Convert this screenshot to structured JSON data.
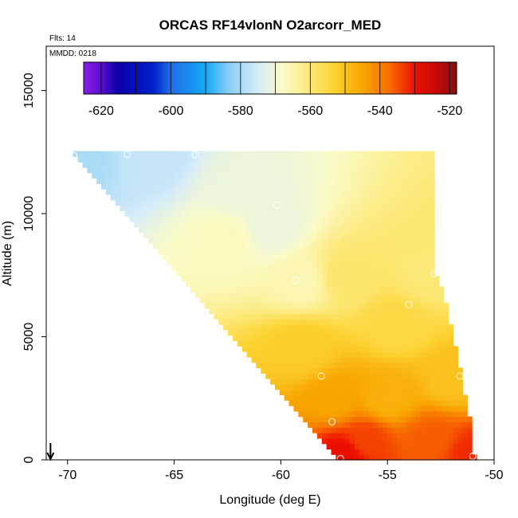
{
  "chart_data": {
    "type": "heatmap",
    "title": "ORCAS RF14vlonN O2arcorr_MED",
    "flights_label": "Flts: 14",
    "mmdd_label": "MMDD: 0218",
    "xlabel": "Longitude (deg E)",
    "ylabel": "Altitude (m)",
    "xlim": [
      -71,
      -50
    ],
    "ylim": [
      0,
      16800
    ],
    "x_ticks": [
      -70,
      -65,
      -60,
      -55,
      -50
    ],
    "x_tick_labels": [
      "-70",
      "-65",
      "-60",
      "-55",
      "-50"
    ],
    "y_ticks": [
      0,
      5000,
      10000,
      15000
    ],
    "y_tick_labels": [
      "0",
      "5000",
      "10000",
      "15000"
    ],
    "colorbar": {
      "range": [
        -625,
        -518
      ],
      "ticks": [
        -620,
        -600,
        -580,
        -560,
        -540,
        -520
      ],
      "tick_labels": [
        "-620",
        "-600",
        "-580",
        "-560",
        "-540",
        "-520"
      ],
      "stops": [
        {
          "v": -625,
          "c": "#8b1fe8"
        },
        {
          "v": -620,
          "c": "#5a0fd0"
        },
        {
          "v": -615,
          "c": "#0a00a8"
        },
        {
          "v": -605,
          "c": "#0022cc"
        },
        {
          "v": -600,
          "c": "#1e6fe8"
        },
        {
          "v": -590,
          "c": "#14aaf5"
        },
        {
          "v": -583,
          "c": "#8ed0f5"
        },
        {
          "v": -575,
          "c": "#d6ecf8"
        },
        {
          "v": -568,
          "c": "#fbfbc8"
        },
        {
          "v": -560,
          "c": "#fde877"
        },
        {
          "v": -553,
          "c": "#fcd230"
        },
        {
          "v": -545,
          "c": "#f8a500"
        },
        {
          "v": -537,
          "c": "#f86a00"
        },
        {
          "v": -530,
          "c": "#ee1000"
        },
        {
          "v": -524,
          "c": "#c80808"
        },
        {
          "v": -518,
          "c": "#801010"
        }
      ]
    },
    "field_region": {
      "top_altitude": 12450,
      "upper_left_corner_lon": -69.8,
      "lower_left_corner_lon": -57.2,
      "right_edge": [
        [
          -52.8,
          7800
        ],
        [
          -52.3,
          6500
        ],
        [
          -51.5,
          3300
        ],
        [
          -51.0,
          1000
        ],
        [
          -50.9,
          0
        ]
      ]
    },
    "field_value_model": {
      "anchors": [
        {
          "lon": -69.5,
          "alt": 12300,
          "value": -580
        },
        {
          "lon": -66.0,
          "alt": 12300,
          "value": -577
        },
        {
          "lon": -62.0,
          "alt": 11000,
          "value": -571
        },
        {
          "lon": -60.5,
          "alt": 9500,
          "value": -571
        },
        {
          "lon": -62.5,
          "alt": 9000,
          "value": -567
        },
        {
          "lon": -59.0,
          "alt": 7300,
          "value": -566
        },
        {
          "lon": -57.0,
          "alt": 7500,
          "value": -559
        },
        {
          "lon": -53.0,
          "alt": 7500,
          "value": -560
        },
        {
          "lon": -54.5,
          "alt": 5500,
          "value": -555
        },
        {
          "lon": -59.0,
          "alt": 4500,
          "value": -552
        },
        {
          "lon": -57.5,
          "alt": 2500,
          "value": -545
        },
        {
          "lon": -55.0,
          "alt": 2500,
          "value": -547
        },
        {
          "lon": -52.0,
          "alt": 3300,
          "value": -550
        },
        {
          "lon": -56.0,
          "alt": 800,
          "value": -534
        },
        {
          "lon": -53.0,
          "alt": 800,
          "value": -536
        },
        {
          "lon": -57.0,
          "alt": 200,
          "value": -529
        },
        {
          "lon": -51.0,
          "alt": 200,
          "value": -532
        }
      ]
    },
    "observation_points": [
      {
        "lon": -69.7,
        "alt": 12350
      },
      {
        "lon": -67.2,
        "alt": 12400
      },
      {
        "lon": -64.0,
        "alt": 12400
      },
      {
        "lon": -60.2,
        "alt": 10350
      },
      {
        "lon": -59.3,
        "alt": 7300
      },
      {
        "lon": -52.8,
        "alt": 7550
      },
      {
        "lon": -54.0,
        "alt": 6300
      },
      {
        "lon": -51.6,
        "alt": 3400
      },
      {
        "lon": -58.1,
        "alt": 3400
      },
      {
        "lon": -57.6,
        "alt": 1550
      },
      {
        "lon": -57.2,
        "alt": 50
      },
      {
        "lon": -51.0,
        "alt": 150
      }
    ],
    "arrow_marker": {
      "lon": -70.8,
      "direction": "down"
    }
  }
}
